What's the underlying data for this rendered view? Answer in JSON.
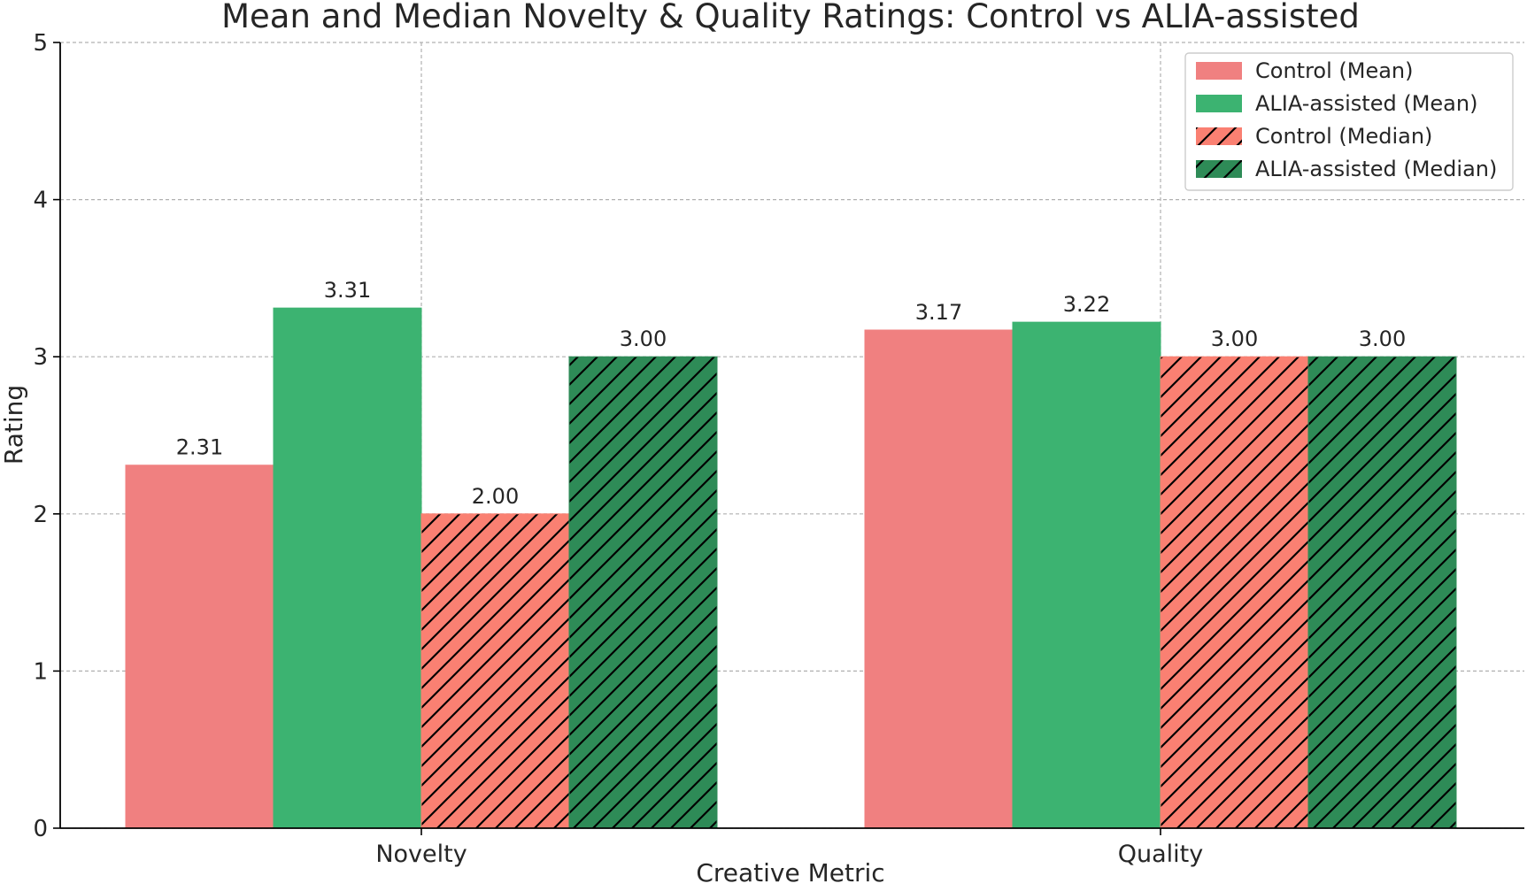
{
  "chart_data": {
    "type": "bar",
    "title": "Mean and Median Novelty & Quality Ratings: Control vs ALIA-assisted",
    "xlabel": "Creative Metric",
    "ylabel": "Rating",
    "categories": [
      "Novelty",
      "Quality"
    ],
    "ylim": [
      0,
      5
    ],
    "yticks": [
      "0",
      "1",
      "2",
      "3",
      "4",
      "5"
    ],
    "grid": true,
    "legend_position": "top-right",
    "series": [
      {
        "name": "Control (Mean)",
        "values": [
          2.31,
          3.17
        ],
        "labels": [
          "2.31",
          "3.17"
        ],
        "color": "#f08080",
        "hatch": false
      },
      {
        "name": "ALIA-assisted (Mean)",
        "values": [
          3.31,
          3.22
        ],
        "labels": [
          "3.31",
          "3.22"
        ],
        "color": "#3cb371",
        "hatch": false
      },
      {
        "name": "Control (Median)",
        "values": [
          2.0,
          3.0
        ],
        "labels": [
          "2.00",
          "3.00"
        ],
        "color": "#fa8072",
        "hatch": true
      },
      {
        "name": "ALIA-assisted (Median)",
        "values": [
          3.0,
          3.0
        ],
        "labels": [
          "3.00",
          "3.00"
        ],
        "color": "#2e8b57",
        "hatch": true
      }
    ]
  }
}
